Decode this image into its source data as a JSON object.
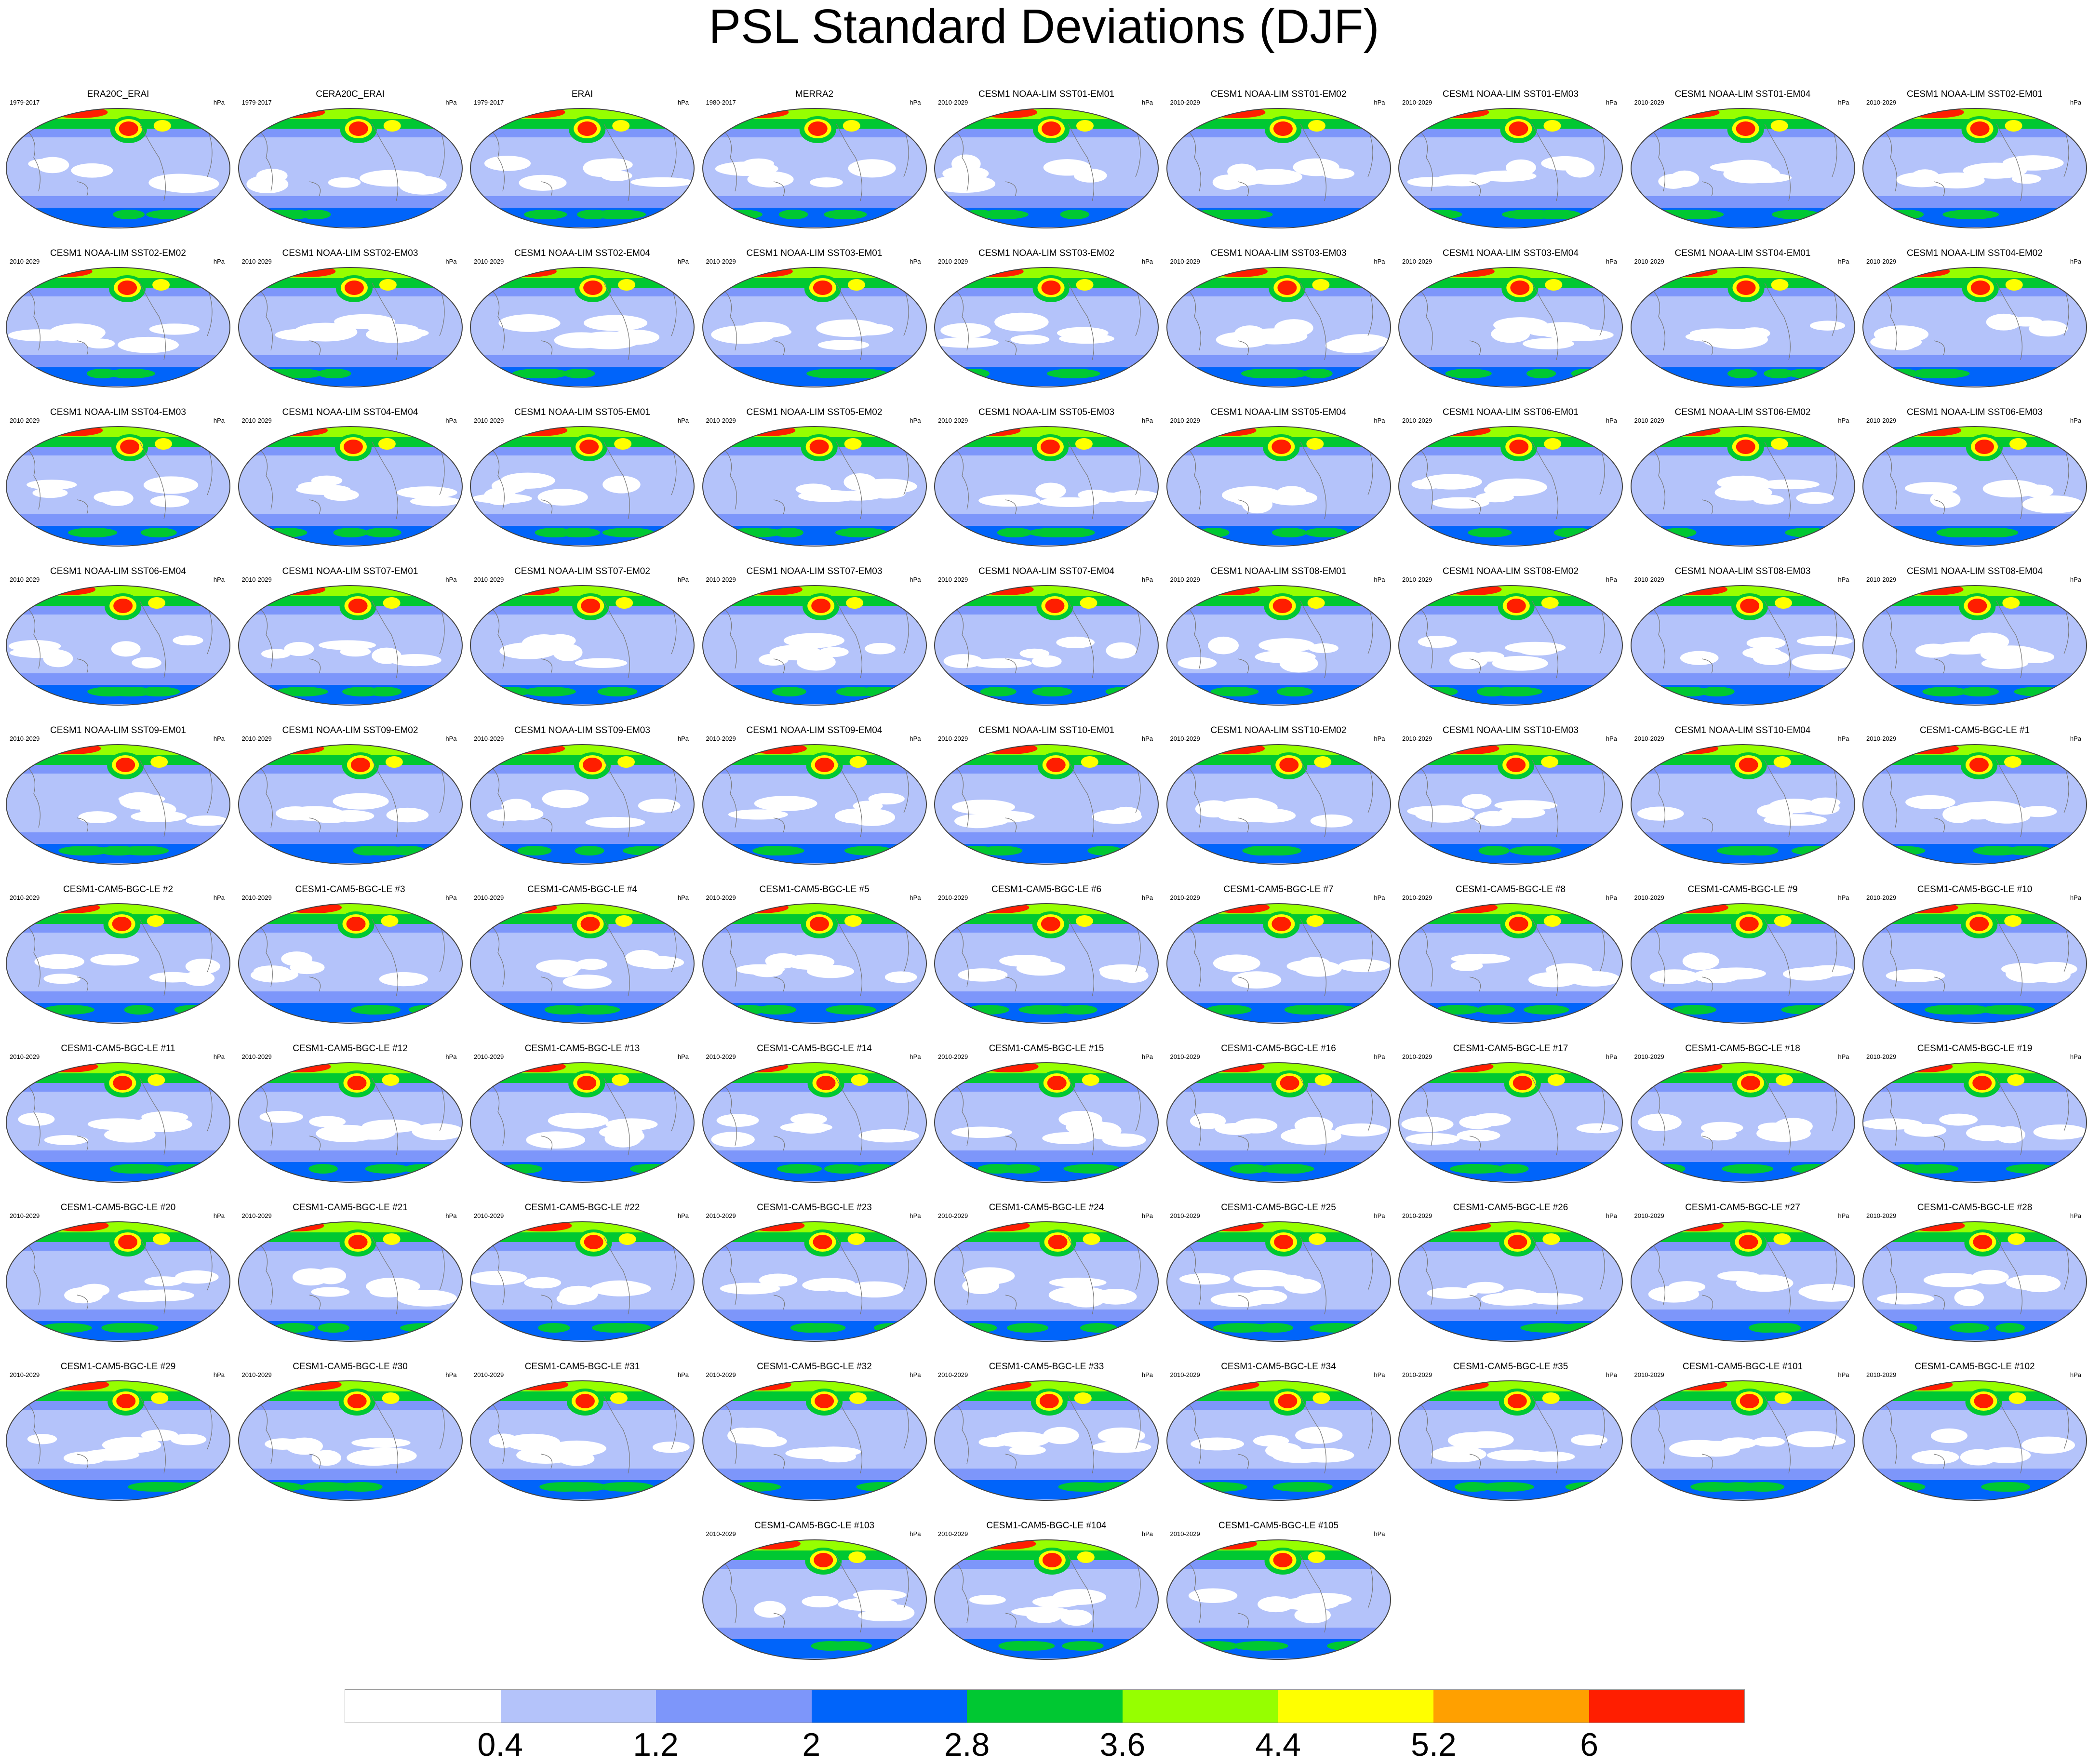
{
  "title": "PSL Standard Deviations (DJF)",
  "unit": "hPa",
  "panels": [
    {
      "title": "ERA20C_ERAI",
      "period": "1979-2017"
    },
    {
      "title": "CERA20C_ERAI",
      "period": "1979-2017"
    },
    {
      "title": "ERAI",
      "period": "1979-2017"
    },
    {
      "title": "MERRA2",
      "period": "1980-2017"
    },
    {
      "title": "CESM1 NOAA-LIM SST01-EM01",
      "period": "2010-2029"
    },
    {
      "title": "CESM1 NOAA-LIM SST01-EM02",
      "period": "2010-2029"
    },
    {
      "title": "CESM1 NOAA-LIM SST01-EM03",
      "period": "2010-2029"
    },
    {
      "title": "CESM1 NOAA-LIM SST01-EM04",
      "period": "2010-2029"
    },
    {
      "title": "CESM1 NOAA-LIM SST02-EM01",
      "period": "2010-2029"
    },
    {
      "title": "CESM1 NOAA-LIM SST02-EM02",
      "period": "2010-2029"
    },
    {
      "title": "CESM1 NOAA-LIM SST02-EM03",
      "period": "2010-2029"
    },
    {
      "title": "CESM1 NOAA-LIM SST02-EM04",
      "period": "2010-2029"
    },
    {
      "title": "CESM1 NOAA-LIM SST03-EM01",
      "period": "2010-2029"
    },
    {
      "title": "CESM1 NOAA-LIM SST03-EM02",
      "period": "2010-2029"
    },
    {
      "title": "CESM1 NOAA-LIM SST03-EM03",
      "period": "2010-2029"
    },
    {
      "title": "CESM1 NOAA-LIM SST03-EM04",
      "period": "2010-2029"
    },
    {
      "title": "CESM1 NOAA-LIM SST04-EM01",
      "period": "2010-2029"
    },
    {
      "title": "CESM1 NOAA-LIM SST04-EM02",
      "period": "2010-2029"
    },
    {
      "title": "CESM1 NOAA-LIM SST04-EM03",
      "period": "2010-2029"
    },
    {
      "title": "CESM1 NOAA-LIM SST04-EM04",
      "period": "2010-2029"
    },
    {
      "title": "CESM1 NOAA-LIM SST05-EM01",
      "period": "2010-2029"
    },
    {
      "title": "CESM1 NOAA-LIM SST05-EM02",
      "period": "2010-2029"
    },
    {
      "title": "CESM1 NOAA-LIM SST05-EM03",
      "period": "2010-2029"
    },
    {
      "title": "CESM1 NOAA-LIM SST05-EM04",
      "period": "2010-2029"
    },
    {
      "title": "CESM1 NOAA-LIM SST06-EM01",
      "period": "2010-2029"
    },
    {
      "title": "CESM1 NOAA-LIM SST06-EM02",
      "period": "2010-2029"
    },
    {
      "title": "CESM1 NOAA-LIM SST06-EM03",
      "period": "2010-2029"
    },
    {
      "title": "CESM1 NOAA-LIM SST06-EM04",
      "period": "2010-2029"
    },
    {
      "title": "CESM1 NOAA-LIM SST07-EM01",
      "period": "2010-2029"
    },
    {
      "title": "CESM1 NOAA-LIM SST07-EM02",
      "period": "2010-2029"
    },
    {
      "title": "CESM1 NOAA-LIM SST07-EM03",
      "period": "2010-2029"
    },
    {
      "title": "CESM1 NOAA-LIM SST07-EM04",
      "period": "2010-2029"
    },
    {
      "title": "CESM1 NOAA-LIM SST08-EM01",
      "period": "2010-2029"
    },
    {
      "title": "CESM1 NOAA-LIM SST08-EM02",
      "period": "2010-2029"
    },
    {
      "title": "CESM1 NOAA-LIM SST08-EM03",
      "period": "2010-2029"
    },
    {
      "title": "CESM1 NOAA-LIM SST08-EM04",
      "period": "2010-2029"
    },
    {
      "title": "CESM1 NOAA-LIM SST09-EM01",
      "period": "2010-2029"
    },
    {
      "title": "CESM1 NOAA-LIM SST09-EM02",
      "period": "2010-2029"
    },
    {
      "title": "CESM1 NOAA-LIM SST09-EM03",
      "period": "2010-2029"
    },
    {
      "title": "CESM1 NOAA-LIM SST09-EM04",
      "period": "2010-2029"
    },
    {
      "title": "CESM1 NOAA-LIM SST10-EM01",
      "period": "2010-2029"
    },
    {
      "title": "CESM1 NOAA-LIM SST10-EM02",
      "period": "2010-2029"
    },
    {
      "title": "CESM1 NOAA-LIM SST10-EM03",
      "period": "2010-2029"
    },
    {
      "title": "CESM1 NOAA-LIM SST10-EM04",
      "period": "2010-2029"
    },
    {
      "title": "CESM1-CAM5-BGC-LE #1",
      "period": "2010-2029"
    },
    {
      "title": "CESM1-CAM5-BGC-LE #2",
      "period": "2010-2029"
    },
    {
      "title": "CESM1-CAM5-BGC-LE #3",
      "period": "2010-2029"
    },
    {
      "title": "CESM1-CAM5-BGC-LE #4",
      "period": "2010-2029"
    },
    {
      "title": "CESM1-CAM5-BGC-LE #5",
      "period": "2010-2029"
    },
    {
      "title": "CESM1-CAM5-BGC-LE #6",
      "period": "2010-2029"
    },
    {
      "title": "CESM1-CAM5-BGC-LE #7",
      "period": "2010-2029"
    },
    {
      "title": "CESM1-CAM5-BGC-LE #8",
      "period": "2010-2029"
    },
    {
      "title": "CESM1-CAM5-BGC-LE #9",
      "period": "2010-2029"
    },
    {
      "title": "CESM1-CAM5-BGC-LE #10",
      "period": "2010-2029"
    },
    {
      "title": "CESM1-CAM5-BGC-LE #11",
      "period": "2010-2029"
    },
    {
      "title": "CESM1-CAM5-BGC-LE #12",
      "period": "2010-2029"
    },
    {
      "title": "CESM1-CAM5-BGC-LE #13",
      "period": "2010-2029"
    },
    {
      "title": "CESM1-CAM5-BGC-LE #14",
      "period": "2010-2029"
    },
    {
      "title": "CESM1-CAM5-BGC-LE #15",
      "period": "2010-2029"
    },
    {
      "title": "CESM1-CAM5-BGC-LE #16",
      "period": "2010-2029"
    },
    {
      "title": "CESM1-CAM5-BGC-LE #17",
      "period": "2010-2029"
    },
    {
      "title": "CESM1-CAM5-BGC-LE #18",
      "period": "2010-2029"
    },
    {
      "title": "CESM1-CAM5-BGC-LE #19",
      "period": "2010-2029"
    },
    {
      "title": "CESM1-CAM5-BGC-LE #20",
      "period": "2010-2029"
    },
    {
      "title": "CESM1-CAM5-BGC-LE #21",
      "period": "2010-2029"
    },
    {
      "title": "CESM1-CAM5-BGC-LE #22",
      "period": "2010-2029"
    },
    {
      "title": "CESM1-CAM5-BGC-LE #23",
      "period": "2010-2029"
    },
    {
      "title": "CESM1-CAM5-BGC-LE #24",
      "period": "2010-2029"
    },
    {
      "title": "CESM1-CAM5-BGC-LE #25",
      "period": "2010-2029"
    },
    {
      "title": "CESM1-CAM5-BGC-LE #26",
      "period": "2010-2029"
    },
    {
      "title": "CESM1-CAM5-BGC-LE #27",
      "period": "2010-2029"
    },
    {
      "title": "CESM1-CAM5-BGC-LE #28",
      "period": "2010-2029"
    },
    {
      "title": "CESM1-CAM5-BGC-LE #29",
      "period": "2010-2029"
    },
    {
      "title": "CESM1-CAM5-BGC-LE #30",
      "period": "2010-2029"
    },
    {
      "title": "CESM1-CAM5-BGC-LE #31",
      "period": "2010-2029"
    },
    {
      "title": "CESM1-CAM5-BGC-LE #32",
      "period": "2010-2029"
    },
    {
      "title": "CESM1-CAM5-BGC-LE #33",
      "period": "2010-2029"
    },
    {
      "title": "CESM1-CAM5-BGC-LE #34",
      "period": "2010-2029"
    },
    {
      "title": "CESM1-CAM5-BGC-LE #35",
      "period": "2010-2029"
    },
    {
      "title": "CESM1-CAM5-BGC-LE #101",
      "period": "2010-2029"
    },
    {
      "title": "CESM1-CAM5-BGC-LE #102",
      "period": "2010-2029"
    },
    {
      "title": "CESM1-CAM5-BGC-LE #103",
      "period": "2010-2029"
    },
    {
      "title": "CESM1-CAM5-BGC-LE #104",
      "period": "2010-2029"
    },
    {
      "title": "CESM1-CAM5-BGC-LE #105",
      "period": "2010-2029"
    }
  ],
  "legend": {
    "colors": [
      "#ffffff",
      "#b4c3fa",
      "#7d96fa",
      "#0064fa",
      "#00c832",
      "#96ff00",
      "#ffff00",
      "#ffa000",
      "#ff1e00"
    ],
    "labels": [
      "0.4",
      "1.2",
      "2",
      "2.8",
      "3.6",
      "4.4",
      "5.2",
      "6"
    ]
  },
  "map_style": {
    "background": "#b4c3fa",
    "band_color": "#7d96fa",
    "south_band": "#0064fa",
    "north_band": "#00c832",
    "center_color": "#ff1e00",
    "ring_color": "#ffff00",
    "coast_color": "#777777"
  }
}
